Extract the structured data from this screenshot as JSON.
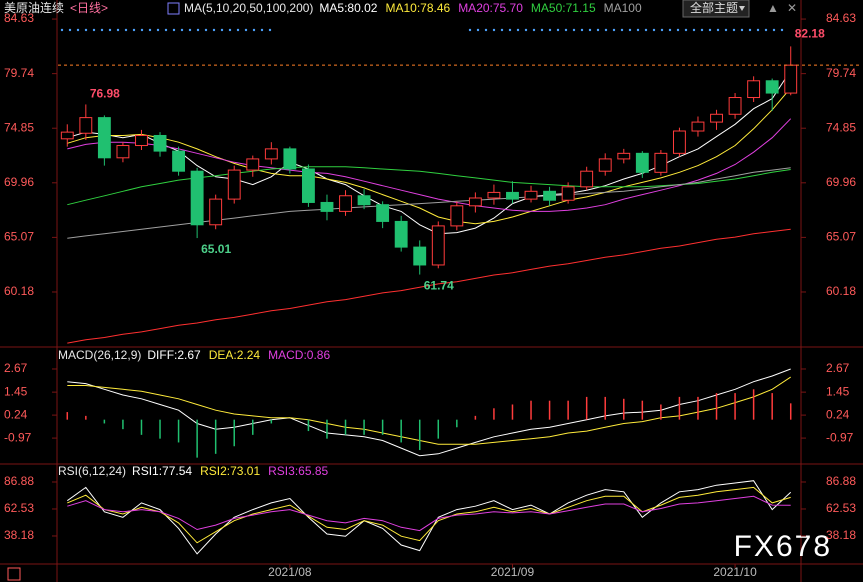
{
  "header": {
    "symbol": "美原油连续",
    "period": "<日线>",
    "theme_button": "全部主题",
    "watermark": "FX678"
  },
  "chart_data": [
    {
      "type": "candlestick",
      "legend_title": "MA(5,10,20,50,100,200)",
      "up_color": "#ff3c3c",
      "down_color": "#20c070",
      "last_price_color": "#ff7f27",
      "ylim": [
        55.43,
        85.62
      ],
      "yticks": [
        84.63,
        79.74,
        74.85,
        69.96,
        65.07,
        60.18
      ],
      "grid": false,
      "open": [
        73.9,
        74.4,
        75.8,
        72.2,
        73.3,
        74.2,
        72.8,
        71.0,
        66.2,
        68.5,
        71.1,
        72.1,
        73.0,
        71.2,
        68.2,
        67.4,
        68.8,
        68.0,
        66.5,
        64.2,
        62.6,
        66.1,
        67.9,
        68.6,
        69.1,
        68.5,
        69.2,
        68.4,
        69.6,
        71.0,
        72.1,
        72.6,
        70.9,
        72.6,
        74.6,
        75.4,
        76.1,
        77.6,
        79.1,
        78.0
      ],
      "high": [
        75.2,
        76.98,
        76.0,
        73.6,
        74.7,
        74.5,
        73.2,
        71.3,
        68.9,
        71.5,
        72.4,
        73.6,
        73.2,
        71.6,
        68.9,
        69.3,
        69.4,
        68.3,
        67.0,
        64.8,
        66.5,
        68.3,
        69.1,
        69.8,
        70.1,
        69.7,
        69.6,
        70.0,
        71.4,
        72.6,
        73.0,
        72.8,
        72.9,
        74.9,
        75.9,
        76.5,
        78.0,
        79.5,
        79.3,
        82.18
      ],
      "low": [
        73.2,
        73.8,
        71.5,
        71.8,
        72.9,
        72.3,
        70.6,
        65.01,
        65.8,
        68.1,
        70.5,
        71.6,
        70.8,
        67.8,
        66.6,
        67.0,
        67.6,
        65.9,
        63.8,
        61.74,
        62.3,
        65.7,
        67.3,
        68.0,
        68.1,
        68.2,
        67.9,
        68.1,
        69.3,
        70.6,
        71.7,
        70.4,
        70.6,
        72.3,
        74.1,
        74.7,
        75.7,
        77.2,
        76.4,
        77.8
      ],
      "close": [
        74.5,
        75.8,
        72.2,
        73.3,
        74.2,
        72.8,
        71.0,
        66.2,
        68.5,
        71.1,
        72.1,
        73.0,
        71.2,
        68.2,
        67.4,
        68.8,
        68.0,
        66.5,
        64.2,
        62.6,
        66.1,
        67.9,
        68.6,
        69.1,
        68.5,
        69.2,
        68.4,
        69.6,
        71.0,
        72.1,
        72.6,
        70.9,
        72.6,
        74.6,
        75.4,
        76.1,
        77.6,
        79.1,
        78.0,
        80.5
      ],
      "series": [
        {
          "name": "MA5:80.02",
          "color": "#ffffff",
          "values": [
            74,
            74.5,
            74.3,
            74,
            74.3,
            73.5,
            72.8,
            71.5,
            70.5,
            70.3,
            69.8,
            70.5,
            71.8,
            71.2,
            70.3,
            69.8,
            68.8,
            67.9,
            67.4,
            66.2,
            65.4,
            65.5,
            65.9,
            66.8,
            68.1,
            68.7,
            68.9,
            69.0,
            69.3,
            69.7,
            70.3,
            70.8,
            71.5,
            72.3,
            73.0,
            74.1,
            75.2,
            76.6,
            77.5,
            80.02
          ]
        },
        {
          "name": "MA10:78.46",
          "color": "#ffeb3b",
          "values": [
            73.5,
            74,
            74.2,
            74.2,
            74.3,
            74,
            73.6,
            73,
            72.3,
            71.7,
            71.2,
            70.8,
            70.6,
            70.6,
            70.3,
            70.0,
            69.5,
            68.9,
            68.3,
            67.7,
            66.9,
            66.5,
            66.3,
            66.5,
            66.9,
            67.4,
            67.9,
            68.4,
            68.7,
            69.1,
            69.6,
            70.0,
            70.4,
            70.9,
            71.5,
            72.3,
            73.3,
            74.8,
            76.5,
            78.46
          ]
        },
        {
          "name": "MA20:75.70",
          "color": "#e040e0",
          "values": [
            73,
            73.4,
            73.6,
            73.6,
            73.5,
            73.3,
            73.0,
            72.6,
            72.2,
            71.8,
            71.5,
            71.3,
            71.1,
            70.9,
            70.8,
            70.5,
            70.1,
            69.7,
            69.3,
            68.9,
            68.5,
            68.2,
            67.9,
            67.7,
            67.5,
            67.4,
            67.4,
            67.5,
            67.7,
            68.0,
            68.5,
            68.9,
            69.3,
            69.7,
            70.2,
            70.8,
            71.6,
            72.7,
            74.0,
            75.7
          ]
        },
        {
          "name": "MA50:71.15",
          "color": "#30d040",
          "values": [
            68.0,
            68.4,
            68.8,
            69.2,
            69.6,
            69.9,
            70.2,
            70.4,
            70.6,
            70.8,
            71.0,
            71.2,
            71.3,
            71.4,
            71.4,
            71.4,
            71.3,
            71.2,
            71.1,
            71.0,
            70.8,
            70.6,
            70.4,
            70.2,
            70.0,
            69.9,
            69.8,
            69.7,
            69.6,
            69.6,
            69.6,
            69.6,
            69.7,
            69.8,
            69.9,
            70.1,
            70.3,
            70.6,
            70.9,
            71.15
          ]
        },
        {
          "name": "MA100",
          "color": "#a0a0a0",
          "values": [
            65.0,
            65.2,
            65.4,
            65.6,
            65.8,
            66.0,
            66.2,
            66.4,
            66.6,
            66.8,
            67.0,
            67.2,
            67.4,
            67.5,
            67.6,
            67.7,
            67.8,
            67.9,
            68.0,
            68.1,
            68.2,
            68.3,
            68.4,
            68.5,
            68.6,
            68.7,
            68.8,
            68.9,
            69.0,
            69.1,
            69.2,
            69.4,
            69.6,
            69.8,
            70.0,
            70.3,
            70.6,
            70.9,
            71.1,
            71.3
          ]
        },
        {
          "name": null,
          "color": "#ff3030",
          "values": [
            55.6,
            55.9,
            56.1,
            56.4,
            56.6,
            56.9,
            57.2,
            57.4,
            57.7,
            57.9,
            58.2,
            58.5,
            58.7,
            59.0,
            59.3,
            59.5,
            59.8,
            60.1,
            60.3,
            60.6,
            60.9,
            61.1,
            61.4,
            61.7,
            61.9,
            62.2,
            62.5,
            62.7,
            63.0,
            63.3,
            63.5,
            63.8,
            64.1,
            64.3,
            64.6,
            64.9,
            65.1,
            65.4,
            65.6,
            65.8
          ]
        }
      ]
    },
    {
      "type": "macd",
      "legend_title": "MACD(26,12,9)",
      "up_color": "#ff3c3c",
      "down_color": "#20c070",
      "ylim": [
        -2.23,
        3.67
      ],
      "yticks": [
        2.67,
        1.45,
        0.24,
        -0.97
      ],
      "grid": false,
      "series": [
        {
          "name": "DIFF:2.67",
          "color": "#ffffff",
          "values": [
            2.0,
            1.9,
            1.6,
            1.3,
            1.1,
            0.8,
            0.5,
            -0.2,
            -0.5,
            -0.4,
            -0.2,
            0.0,
            0.1,
            -0.3,
            -0.7,
            -0.8,
            -0.9,
            -1.1,
            -1.5,
            -1.9,
            -1.8,
            -1.5,
            -1.2,
            -0.9,
            -0.7,
            -0.5,
            -0.4,
            -0.2,
            0.0,
            0.2,
            0.35,
            0.4,
            0.5,
            0.8,
            1.0,
            1.3,
            1.6,
            2.0,
            2.3,
            2.67
          ]
        },
        {
          "name": "DEA:2.24",
          "color": "#ffeb3b",
          "values": [
            1.8,
            1.8,
            1.7,
            1.6,
            1.5,
            1.3,
            1.1,
            0.8,
            0.5,
            0.3,
            0.2,
            0.1,
            0.1,
            0.0,
            -0.2,
            -0.4,
            -0.5,
            -0.7,
            -0.9,
            -1.1,
            -1.3,
            -1.3,
            -1.3,
            -1.2,
            -1.1,
            -1.0,
            -0.9,
            -0.7,
            -0.6,
            -0.4,
            -0.2,
            -0.1,
            0.1,
            0.2,
            0.4,
            0.6,
            0.9,
            1.2,
            1.6,
            2.24
          ]
        },
        {
          "name": "MACD:0.86",
          "color": "#e040e0",
          "style": "bar",
          "values": [
            0.4,
            0.2,
            -0.2,
            -0.5,
            -0.8,
            -1.0,
            -1.2,
            -2.0,
            -1.8,
            -1.4,
            -0.8,
            -0.2,
            0.0,
            -0.6,
            -1.0,
            -0.8,
            -0.8,
            -0.8,
            -1.2,
            -1.6,
            -1.0,
            -0.4,
            0.2,
            0.6,
            0.8,
            1.0,
            1.0,
            1.0,
            1.2,
            1.2,
            1.1,
            1.0,
            0.8,
            1.2,
            1.2,
            1.4,
            1.4,
            1.6,
            1.4,
            0.86
          ]
        }
      ]
    },
    {
      "type": "line",
      "legend_title": "RSI(6,12,24)",
      "ylim": [
        13.8,
        101.3
      ],
      "yticks": [
        86.88,
        62.53,
        38.18
      ],
      "grid": false,
      "categories": [
        null,
        null,
        null,
        null,
        null,
        null,
        null,
        null,
        null,
        null,
        null,
        null,
        "2021/08",
        null,
        null,
        null,
        null,
        null,
        null,
        null,
        null,
        null,
        null,
        null,
        "2021/09",
        null,
        null,
        null,
        null,
        null,
        null,
        null,
        null,
        null,
        null,
        null,
        "2021/10",
        null,
        null,
        null
      ],
      "series": [
        {
          "name": "RSI1:77.54",
          "color": "#ffffff",
          "values": [
            70,
            82,
            60,
            55,
            68,
            62,
            45,
            22,
            40,
            55,
            62,
            68,
            72,
            55,
            40,
            38,
            52,
            45,
            30,
            25,
            55,
            62,
            65,
            70,
            62,
            66,
            58,
            68,
            75,
            80,
            78,
            55,
            68,
            78,
            80,
            84,
            86,
            88,
            62,
            77.54
          ]
        },
        {
          "name": "RSI2:73.01",
          "color": "#ffeb3b",
          "values": [
            68,
            75,
            62,
            58,
            64,
            60,
            50,
            32,
            42,
            52,
            58,
            62,
            66,
            56,
            46,
            44,
            52,
            48,
            38,
            34,
            52,
            58,
            60,
            64,
            60,
            63,
            58,
            64,
            70,
            74,
            74,
            60,
            66,
            73,
            75,
            78,
            80,
            82,
            68,
            73.01
          ]
        },
        {
          "name": "RSI3:65.85",
          "color": "#e040e0",
          "values": [
            65,
            70,
            62,
            60,
            62,
            60,
            54,
            44,
            48,
            54,
            57,
            60,
            62,
            57,
            52,
            50,
            54,
            52,
            46,
            43,
            54,
            57,
            58,
            60,
            59,
            60,
            58,
            61,
            64,
            67,
            67,
            60,
            63,
            67,
            68,
            70,
            72,
            74,
            66,
            65.85
          ]
        }
      ]
    }
  ]
}
